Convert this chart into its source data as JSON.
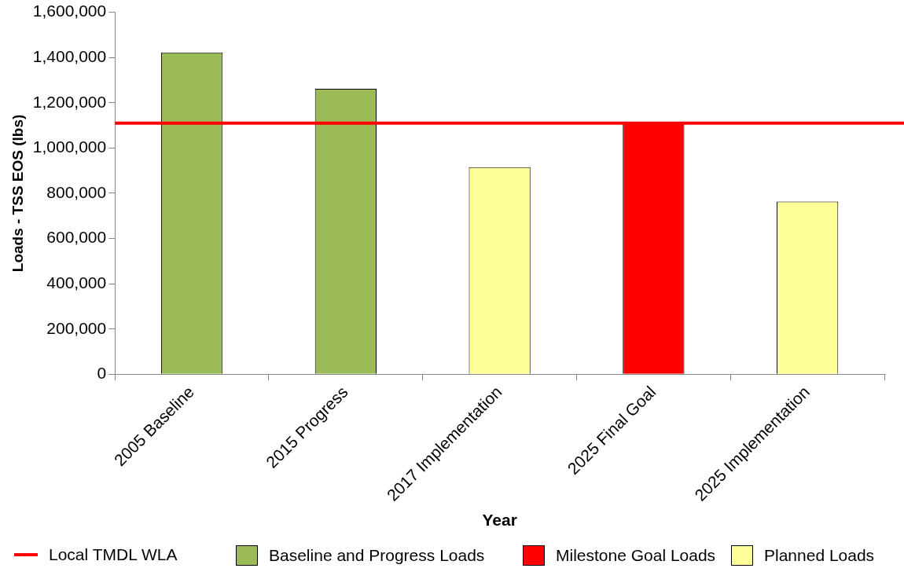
{
  "chart_data": {
    "type": "bar",
    "xlabel": "Year",
    "ylabel": "Loads - TSS EOS (lbs)",
    "categories": [
      "2005 Baseline",
      "2015 Progress",
      "2017 Implementation",
      "2025 Final Goal",
      "2025 Implementation"
    ],
    "stacked": true,
    "series": [
      {
        "name": "Baseline and Progress Loads",
        "color": "#9bbb59",
        "values": [
          1422000,
          1262000,
          null,
          null,
          null
        ]
      },
      {
        "name": "Milestone Goal Loads",
        "color": "#ff0000",
        "values": [
          null,
          null,
          null,
          1110000,
          null
        ]
      },
      {
        "name": "Planned Loads",
        "color": "#ffff99",
        "values": [
          null,
          null,
          915000,
          null,
          763000
        ]
      }
    ],
    "ref_lines": [
      {
        "axis": "y",
        "value": 1110000,
        "label": "Local TMDL WLA",
        "color": "#ff0000"
      }
    ],
    "ylim": [
      0,
      1600000
    ],
    "yticks": [
      0,
      {
        "value": 200000,
        "label": "200,000"
      },
      {
        "value": 400000,
        "label": "400,000"
      },
      {
        "value": 600000,
        "label": "600,000"
      },
      {
        "value": 800000,
        "label": "800,000"
      },
      {
        "value": 1000000,
        "label": "1,000,000"
      },
      {
        "value": 1200000,
        "label": "1,200,000"
      },
      {
        "value": 1400000,
        "label": "1,400,000"
      },
      {
        "value": 1600000,
        "label": "1,600,000"
      }
    ],
    "grid": false,
    "legend": "bottom"
  }
}
